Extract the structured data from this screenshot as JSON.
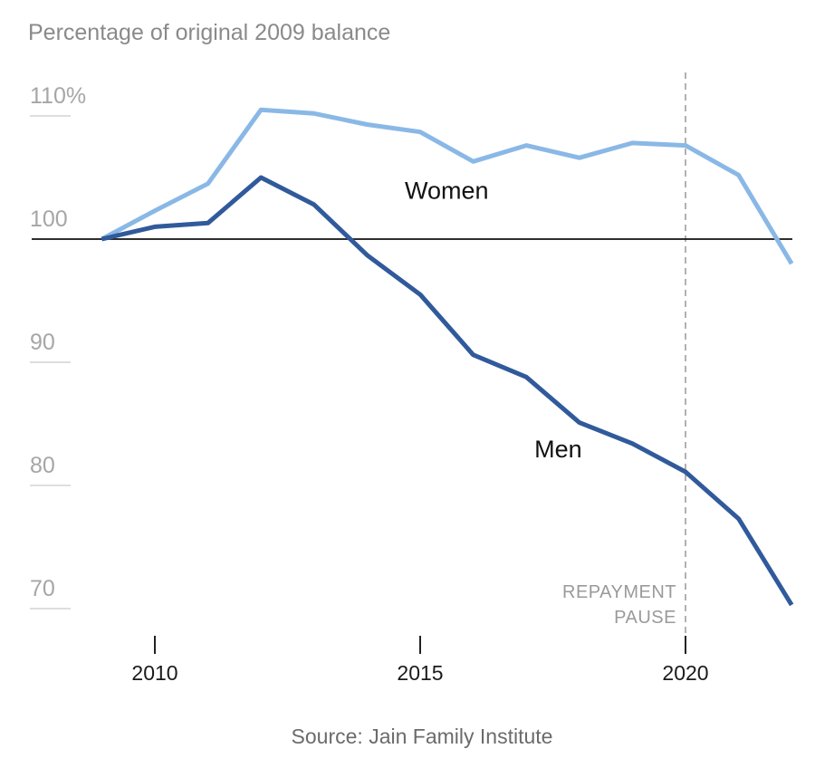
{
  "chart_data": {
    "type": "line",
    "subtitle": "Percentage of original 2009 balance",
    "x": [
      2009,
      2010,
      2011,
      2012,
      2013,
      2014,
      2015,
      2016,
      2017,
      2018,
      2019,
      2020,
      2021,
      2022
    ],
    "series": [
      {
        "name": "Women",
        "color": "#8ab8e6",
        "values": [
          100,
          102.3,
          104.5,
          110.5,
          110.2,
          109.3,
          108.7,
          106.3,
          107.6,
          106.6,
          107.8,
          107.6,
          105.2,
          98
        ]
      },
      {
        "name": "Men",
        "color": "#305a9b",
        "values": [
          100,
          101,
          101.3,
          105,
          102.8,
          98.7,
          95.5,
          90.6,
          88.8,
          85.1,
          83.4,
          81.1,
          77.3,
          70.3
        ]
      }
    ],
    "ylim": [
      68,
      113
    ],
    "xlim": [
      2008.5,
      2022.5
    ],
    "yticks": [
      {
        "value": 110,
        "label": "110%"
      },
      {
        "value": 100,
        "label": "100"
      },
      {
        "value": 90,
        "label": "90"
      },
      {
        "value": 80,
        "label": "80"
      },
      {
        "value": 70,
        "label": "70"
      }
    ],
    "xticks": [
      {
        "value": 2010,
        "label": "2010"
      },
      {
        "value": 2015,
        "label": "2015"
      },
      {
        "value": 2020,
        "label": "2020"
      }
    ],
    "baseline": 100,
    "baseline_color": "#111111",
    "annotation": {
      "x": 2020,
      "lines": [
        "REPAYMENT",
        "PAUSE"
      ]
    },
    "series_labels": [
      {
        "text": "Women",
        "x": 2015.5,
        "y": 104
      },
      {
        "text": "Men",
        "x": 2017.6,
        "y": 83
      }
    ],
    "source": "Source: Jain Family Institute",
    "grid": false
  }
}
